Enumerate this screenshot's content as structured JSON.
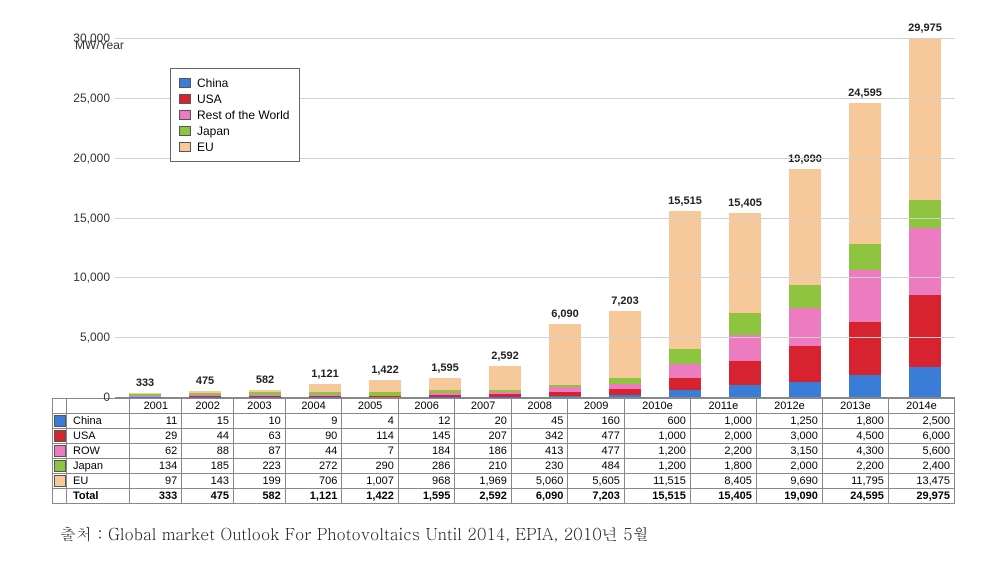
{
  "chart": {
    "type": "bar-stacked",
    "axis_unit_label": "MW/Year",
    "ylim": [
      0,
      30000
    ],
    "ytick_step": 5000,
    "yticks": [
      "0",
      "5,000",
      "10,000",
      "15,000",
      "20,000",
      "25,000",
      "30,000"
    ],
    "categories": [
      "2001",
      "2002",
      "2003",
      "2004",
      "2005",
      "2006",
      "2007",
      "2008",
      "2009",
      "2010e",
      "2011e",
      "2012e",
      "2013e",
      "2014e"
    ],
    "legend_order": [
      "China",
      "USA",
      "Rest of the World",
      "Japan",
      "EU"
    ],
    "stack_order": [
      "China",
      "USA",
      "ROW",
      "Japan",
      "EU"
    ],
    "series": {
      "China": {
        "color": "#3a7dd8",
        "values": [
          11,
          15,
          10,
          9,
          4,
          12,
          20,
          45,
          160,
          600,
          1000,
          1250,
          1800,
          2500
        ]
      },
      "USA": {
        "color": "#d6232f",
        "values": [
          29,
          44,
          63,
          90,
          114,
          145,
          207,
          342,
          477,
          1000,
          2000,
          3000,
          4500,
          6000
        ]
      },
      "ROW": {
        "color": "#ec7bbf",
        "label": "Rest of the World",
        "values": [
          62,
          88,
          87,
          44,
          7,
          184,
          186,
          413,
          477,
          1200,
          2200,
          3150,
          4300,
          5600
        ]
      },
      "Japan": {
        "color": "#8fc441",
        "values": [
          134,
          185,
          223,
          272,
          290,
          286,
          210,
          230,
          484,
          1200,
          1800,
          2000,
          2200,
          2400
        ]
      },
      "EU": {
        "color": "#f6c89a",
        "values": [
          97,
          143,
          199,
          706,
          1007,
          968,
          1969,
          5060,
          5605,
          11515,
          8405,
          9690,
          11795,
          13475
        ]
      }
    },
    "totals_raw": [
      333,
      475,
      582,
      1121,
      1422,
      1595,
      2592,
      6090,
      7203,
      15515,
      15405,
      19090,
      24595,
      29975
    ],
    "totals_fmt": [
      "333",
      "475",
      "582",
      "1,121",
      "1,422",
      "1,595",
      "2,592",
      "6,090",
      "7,203",
      "15,515",
      "15,405",
      "19,090",
      "24,595",
      "29,975"
    ],
    "background_color": "#ffffff",
    "grid_color": "#d0d0d0",
    "label_fontsize": 11,
    "tick_fontsize": 12
  },
  "table": {
    "row_order": [
      "China",
      "USA",
      "ROW",
      "Japan",
      "EU"
    ],
    "row_total_label": "Total"
  },
  "source": "출처 : Global market Outlook For Photovoltaics Until 2014, EPIA, 2010년 5월"
}
